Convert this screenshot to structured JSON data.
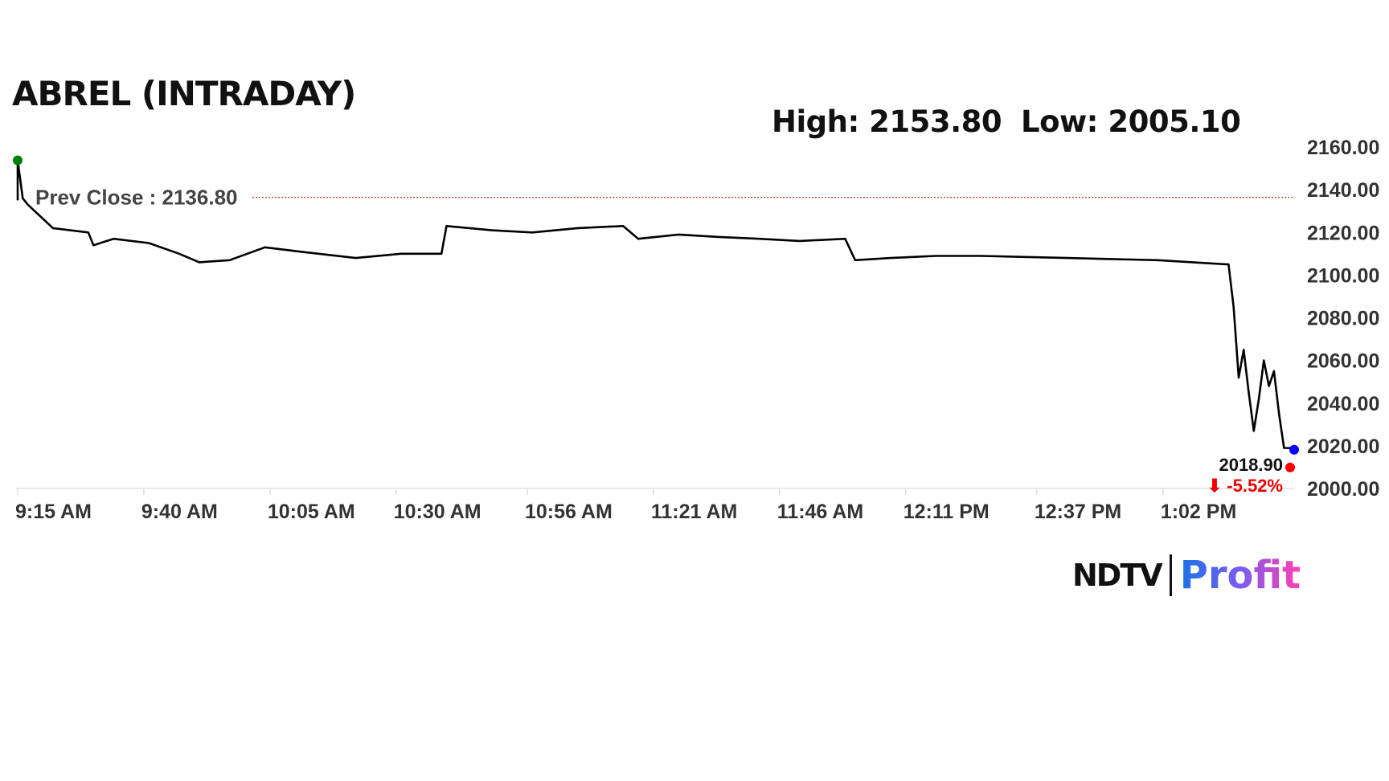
{
  "chart_data": {
    "type": "line",
    "title": "ABREL (INTRADAY)",
    "high_label": "High: 2153.80",
    "low_label": "Low: 2005.10",
    "prev_close_label": "Prev Close : 2136.80",
    "prev_close": 2136.8,
    "last_price_label": "2018.90",
    "change_label": "⬇ -5.52%",
    "ylim": [
      2000,
      2160
    ],
    "yticks": [
      "2000.00",
      "2020.00",
      "2040.00",
      "2060.00",
      "2080.00",
      "2100.00",
      "2120.00",
      "2140.00",
      "2160.00"
    ],
    "xlim": [
      "09:15",
      "13:28"
    ],
    "xticks": [
      {
        "t": "09:15",
        "label": "9:15 AM"
      },
      {
        "t": "09:40",
        "label": "9:40 AM"
      },
      {
        "t": "10:05",
        "label": "10:05 AM"
      },
      {
        "t": "10:30",
        "label": "10:30 AM"
      },
      {
        "t": "10:56",
        "label": "10:56 AM"
      },
      {
        "t": "11:21",
        "label": "11:21 AM"
      },
      {
        "t": "11:46",
        "label": "11:46 AM"
      },
      {
        "t": "12:11",
        "label": "12:11 PM"
      },
      {
        "t": "12:37",
        "label": "12:37 PM"
      },
      {
        "t": "13:02",
        "label": "1:02 PM"
      }
    ],
    "series": [
      {
        "color": "#000000",
        "points": [
          [
            "09:15",
            2135
          ],
          [
            "09:15",
            2153.8
          ],
          [
            "09:16",
            2136
          ],
          [
            "09:17",
            2133
          ],
          [
            "09:22",
            2122
          ],
          [
            "09:29",
            2120
          ],
          [
            "09:30",
            2114
          ],
          [
            "09:34",
            2117
          ],
          [
            "09:41",
            2115
          ],
          [
            "09:47",
            2110
          ],
          [
            "09:51",
            2106
          ],
          [
            "09:57",
            2107
          ],
          [
            "10:04",
            2113
          ],
          [
            "10:11",
            2111
          ],
          [
            "10:22",
            2108
          ],
          [
            "10:31",
            2110
          ],
          [
            "10:39",
            2110
          ],
          [
            "10:40",
            2123
          ],
          [
            "10:49",
            2121
          ],
          [
            "10:57",
            2120
          ],
          [
            "11:06",
            2122
          ],
          [
            "11:15",
            2123
          ],
          [
            "11:18",
            2117
          ],
          [
            "11:26",
            2119
          ],
          [
            "11:33",
            2118
          ],
          [
            "11:42",
            2117
          ],
          [
            "11:50",
            2116
          ],
          [
            "11:59",
            2117
          ],
          [
            "12:01",
            2107
          ],
          [
            "12:08",
            2108
          ],
          [
            "12:17",
            2109
          ],
          [
            "12:26",
            2109
          ],
          [
            "12:43",
            2108
          ],
          [
            "13:01",
            2107
          ],
          [
            "13:15",
            2105
          ],
          [
            "13:16",
            2085
          ],
          [
            "13:17",
            2052
          ],
          [
            "13:18",
            2065
          ],
          [
            "13:19",
            2045
          ],
          [
            "13:20",
            2027
          ],
          [
            "13:21",
            2042
          ],
          [
            "13:22",
            2060
          ],
          [
            "13:23",
            2048
          ],
          [
            "13:24",
            2055
          ],
          [
            "13:25",
            2035
          ],
          [
            "13:26",
            2019
          ],
          [
            "13:28",
            2018.9
          ]
        ]
      }
    ],
    "markers": {
      "start_color": "#008000",
      "end_color": "#0000ff",
      "last_color": "#ff0000"
    },
    "prev_close_color": "#c0392b",
    "grid": false
  },
  "brand": {
    "part1": "NDTV",
    "part2": "Profit"
  }
}
